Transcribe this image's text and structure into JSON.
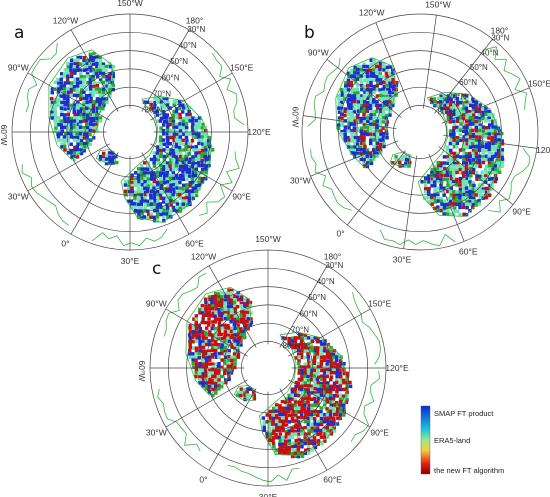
{
  "panels": [
    {
      "letter": "a",
      "cx": 130,
      "cy": 132,
      "r": 118
    },
    {
      "letter": "b",
      "cx": 420,
      "cy": 132,
      "r": 118
    },
    {
      "letter": "c",
      "cx": 268,
      "cy": 368,
      "r": 118
    }
  ],
  "lon_labels": [
    "150°W",
    "180°",
    "150°E",
    "120°E",
    "90°E",
    "60°E",
    "30°E",
    "0°",
    "30°W",
    "60°W",
    "90°W",
    "120°W"
  ],
  "lat_labels": [
    "30°N",
    "40°N",
    "50°N",
    "60°N",
    "70°N",
    "80°N"
  ],
  "legend": {
    "labels": [
      "SMAP FT product",
      "ERA5-land",
      "the new FT algorithm"
    ],
    "colors": [
      "#0a2ad6",
      "#1ec8d8",
      "#9be68a",
      "#f0d040",
      "#e02010",
      "#8a0000"
    ]
  },
  "palette": {
    "smap": "#1a2fd0",
    "era5": "#6fe4b0",
    "newft": "#c81010",
    "green_veg": "#2aa836",
    "coastline": "#2dbb3a"
  }
}
